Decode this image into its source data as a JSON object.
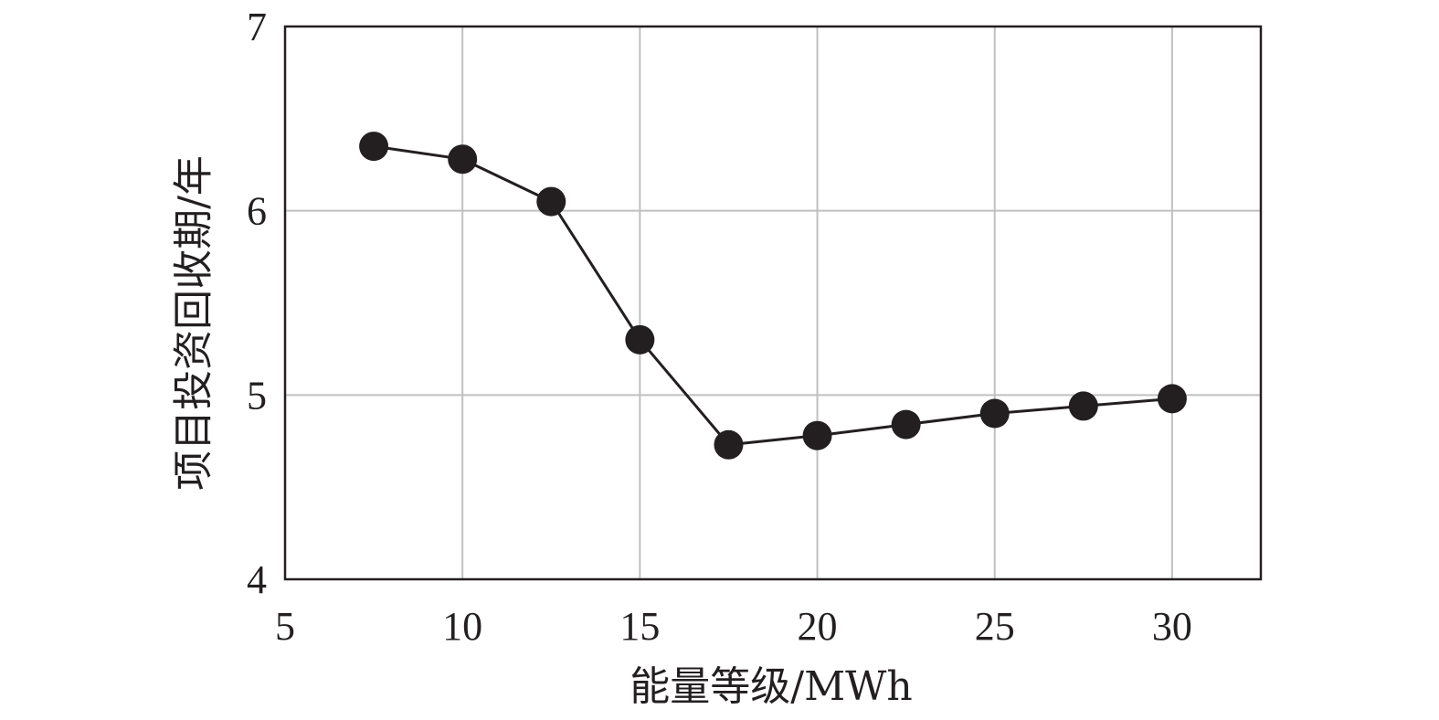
{
  "chart_data": {
    "type": "line",
    "title": "",
    "xlabel": "能量等级/MWh",
    "ylabel": "项目投资回收期/年",
    "xlim": [
      5,
      32.5
    ],
    "ylim": [
      4,
      7
    ],
    "xticks": [
      5,
      10,
      15,
      20,
      25,
      30
    ],
    "yticks": [
      4,
      5,
      6,
      7
    ],
    "grid": true,
    "legend": "none",
    "series": [
      {
        "x": [
          7.5,
          10,
          12.5,
          15,
          17.5,
          20,
          22.5,
          25,
          27.5,
          30
        ],
        "values": [
          6.35,
          6.28,
          6.05,
          5.3,
          4.73,
          4.78,
          4.84,
          4.9,
          4.94,
          4.98
        ],
        "color": "#231f20",
        "marker": "circle"
      }
    ]
  }
}
